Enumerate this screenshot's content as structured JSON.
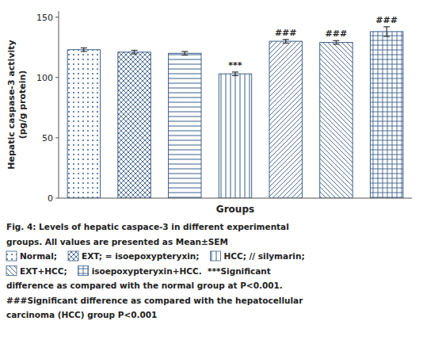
{
  "chart_data": {
    "type": "bar",
    "categories": [
      "Normal",
      "EXT",
      "isoepoxypteryxin",
      "HCC",
      "silymarin",
      "EXT+HCC",
      "isoepoxypteryxin+HCC"
    ],
    "values": [
      123,
      121,
      120,
      103,
      130,
      129,
      138
    ],
    "errors": [
      1.5,
      1.5,
      1.5,
      1.5,
      1.5,
      1.5,
      4.0
    ],
    "annotations": [
      null,
      null,
      null,
      "***",
      "###",
      "###",
      "###"
    ],
    "ylabel": "Hepatic caspase-3 activity\n(pg/g protein)",
    "xlabel": "Groups",
    "ylim": [
      0,
      155
    ],
    "yticks": [
      0,
      50,
      100,
      150
    ],
    "grid": false,
    "tick_labels": "y",
    "caption": [
      "Fig. 4: Levels of hepatic caspace-3 in different experimental",
      "groups. All values are presented as Mean±SEM",
      [
        {
          "icon": "Normal",
          "text": "Normal;"
        },
        {
          "icon": "EXT",
          "text": "EXT; = isoepoxypteryxin;"
        },
        {
          "icon": "HCC",
          "text": "HCC; // silymarin;"
        }
      ],
      [
        {
          "icon": "EXT+HCC",
          "text": "EXT+HCC;"
        },
        {
          "icon": "isoepoxypteryxin+HCC",
          "text": "isoepoxypteryxin+HCC.  ***Significant"
        }
      ],
      "difference as compared with the normal group at P<0.001.",
      "###Significant difference as compared with the hepatocellular",
      "carcinoma (HCC) group P<0.001"
    ]
  }
}
